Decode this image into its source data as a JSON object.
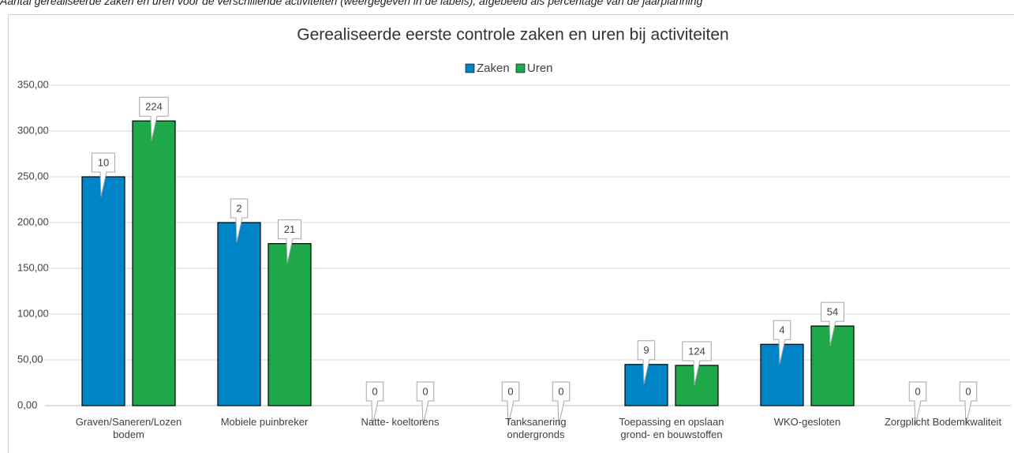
{
  "chart_data": {
    "type": "bar",
    "caption": "Aantal gerealiseerde zaken en uren voor de verschillende activiteiten (weergegeven in de labels), afgebeeld als percentage van de jaarplanning",
    "title": "Gerealiseerde eerste controle zaken en uren bij activiteiten",
    "categories": [
      "Graven/Saneren/Lozen bodem",
      "Mobiele puinbreker",
      "Natte- koeltorens",
      "Tanksanering ondergronds",
      "Toepassing en opslaan grond- en bouwstoffen",
      "WKO-gesloten",
      "Zorgplicht Bodemkwaliteit"
    ],
    "series": [
      {
        "name": "Zaken",
        "color": "#0084c8",
        "values": [
          250,
          200,
          0,
          0,
          45,
          67,
          0
        ],
        "data_labels": [
          10,
          2,
          0,
          0,
          9,
          4,
          0
        ]
      },
      {
        "name": "Uren",
        "color": "#1ea84a",
        "values": [
          311,
          177,
          0,
          0,
          44,
          87,
          0
        ],
        "data_labels": [
          224,
          21,
          0,
          0,
          124,
          54,
          0
        ]
      }
    ],
    "ylim": [
      0,
      350
    ],
    "yticks": [
      {
        "value": 0,
        "label": "0,00"
      },
      {
        "value": 50,
        "label": "50,00"
      },
      {
        "value": 100,
        "label": "100,00"
      },
      {
        "value": 150,
        "label": "150,00"
      },
      {
        "value": 200,
        "label": "200,00"
      },
      {
        "value": 250,
        "label": "250,00"
      },
      {
        "value": 300,
        "label": "300,00"
      },
      {
        "value": 350,
        "label": "350,00"
      }
    ],
    "grid": true,
    "legend": "top"
  }
}
